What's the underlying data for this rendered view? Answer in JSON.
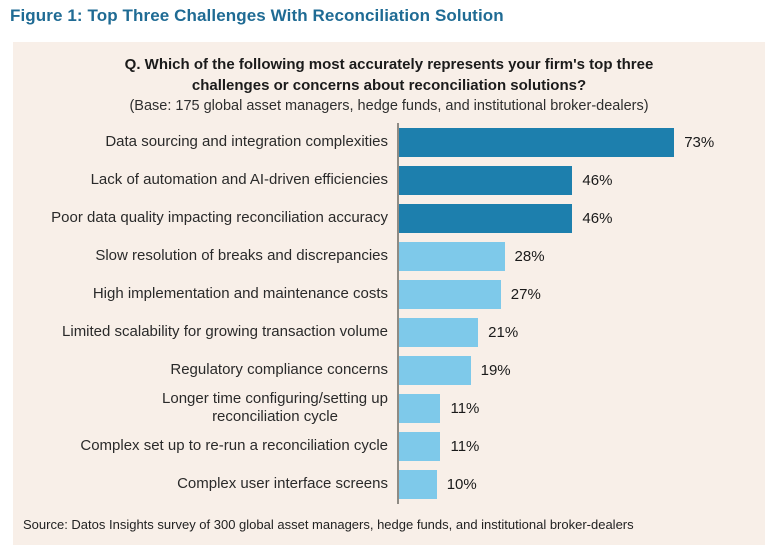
{
  "figure": {
    "title": "Figure 1: Top Three Challenges With Reconciliation Solution",
    "title_color": "#1f6b94"
  },
  "panel": {
    "background_color": "#f8efe8",
    "question": "Q. Which of the following most accurately represents your firm's top three\nchallenges or concerns about reconciliation solutions?",
    "base_note": "(Base: 175 global asset managers, hedge funds, and institutional broker-dealers)",
    "source_note": "Source: Datos Insights survey of 300 global asset managers, hedge funds, and institutional broker-dealers"
  },
  "chart_data": {
    "type": "bar",
    "orientation": "horizontal",
    "title": "Q. Which of the following most accurately represents your firm's top three challenges or concerns about reconciliation solutions?",
    "xlabel": "",
    "ylabel": "",
    "xlim": [
      0,
      100
    ],
    "grid": false,
    "legend": "none",
    "categories": [
      "Data sourcing and integration complexities",
      "Lack of automation and AI-driven efficiencies",
      "Poor data quality impacting reconciliation accuracy",
      "Slow resolution of breaks and discrepancies",
      "High implementation and maintenance costs",
      "Limited scalability for growing transaction volume",
      "Regulatory compliance concerns",
      "Longer time configuring/setting up\nreconciliation cycle",
      "Complex set up to re-run a reconciliation cycle",
      "Complex user interface screens"
    ],
    "values": [
      73,
      46,
      46,
      28,
      27,
      21,
      19,
      11,
      11,
      10
    ],
    "value_labels": [
      "73%",
      "46%",
      "46%",
      "28%",
      "27%",
      "21%",
      "19%",
      "11%",
      "11%",
      "10%"
    ],
    "bar_tones": [
      "dark",
      "dark",
      "dark",
      "light",
      "light",
      "light",
      "light",
      "light",
      "light",
      "light"
    ],
    "colors": {
      "dark": "#1d7fad",
      "light": "#7ec9ea"
    },
    "axis_color": "#8f8b84"
  }
}
